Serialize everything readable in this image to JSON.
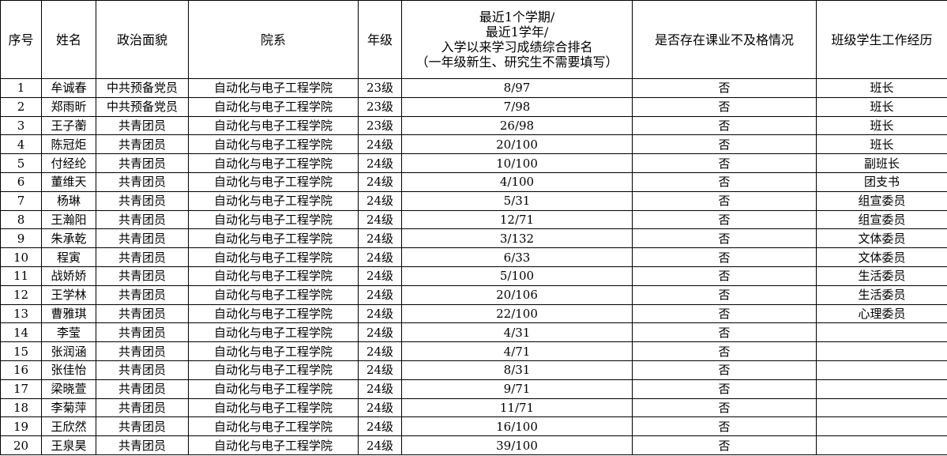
{
  "table": {
    "headers": [
      "序号",
      "姓名",
      "政治面貌",
      "院系",
      "年级",
      [
        "最近1个学期/",
        "最近1学年/",
        "入学以来学习成绩综合排名",
        "（一年级新生、研究生不需要填写）"
      ],
      "是否存在课业不及格情况",
      "班级学生工作经历"
    ],
    "rows": [
      [
        1,
        "牟诚春",
        "中共预备党员",
        "自动化与电子工程学院",
        "23级",
        "8/97",
        "否",
        "班长"
      ],
      [
        2,
        "郑雨昕",
        "中共预备党员",
        "自动化与电子工程学院",
        "23级",
        "7/98",
        "否",
        "班长"
      ],
      [
        3,
        "王子蘅",
        "共青团员",
        "自动化与电子工程学院",
        "23级",
        "26/98",
        "否",
        "班长"
      ],
      [
        4,
        "陈冠炬",
        "共青团员",
        "自动化与电子工程学院",
        "24级",
        "20/100",
        "否",
        "班长"
      ],
      [
        5,
        "付经纶",
        "共青团员",
        "自动化与电子工程学院",
        "24级",
        "10/100",
        "否",
        "副班长"
      ],
      [
        6,
        "董维天",
        "共青团员",
        "自动化与电子工程学院",
        "24级",
        "4/100",
        "否",
        "团支书"
      ],
      [
        7,
        "杨琳",
        "共青团员",
        "自动化与电子工程学院",
        "24级",
        "5/31",
        "否",
        "组宣委员"
      ],
      [
        8,
        "王瀚阳",
        "共青团员",
        "自动化与电子工程学院",
        "24级",
        "12/71",
        "否",
        "组宣委员"
      ],
      [
        9,
        "朱承乾",
        "共青团员",
        "自动化与电子工程学院",
        "24级",
        "3/132",
        "否",
        "文体委员"
      ],
      [
        10,
        "程寅",
        "共青团员",
        "自动化与电子工程学院",
        "24级",
        "6/33",
        "否",
        "文体委员"
      ],
      [
        11,
        "战娇娇",
        "共青团员",
        "自动化与电子工程学院",
        "24级",
        "5/100",
        "否",
        "生活委员"
      ],
      [
        12,
        "王学林",
        "共青团员",
        "自动化与电子工程学院",
        "24级",
        "20/106",
        "否",
        "生活委员"
      ],
      [
        13,
        "曹雅琪",
        "共青团员",
        "自动化与电子工程学院",
        "24级",
        "22/100",
        "否",
        "心理委员"
      ],
      [
        14,
        "李莹",
        "共青团员",
        "自动化与电子工程学院",
        "24级",
        "4/31",
        "否"
      ],
      [
        15,
        "张润涵",
        "共青团员",
        "自动化与电子工程学院",
        "24级",
        "4/71",
        "否"
      ],
      [
        16,
        "张佳怡",
        "共青团员",
        "自动化与电子工程学院",
        "24级",
        "8/31",
        "否"
      ],
      [
        17,
        "梁晓萱",
        "共青团员",
        "自动化与电子工程学院",
        "24级",
        "9/71",
        "否"
      ],
      [
        18,
        "李菊萍",
        "共青团员",
        "自动化与电子工程学院",
        "24级",
        "11/71",
        "否"
      ],
      [
        19,
        "王欣然",
        "共青团员",
        "自动化与电子工程学院",
        "24级",
        "16/100",
        "否"
      ],
      [
        20,
        "王泉昊",
        "共青团员",
        "自动化与电子工程学院",
        "24级",
        "39/100",
        "否"
      ]
    ]
  }
}
